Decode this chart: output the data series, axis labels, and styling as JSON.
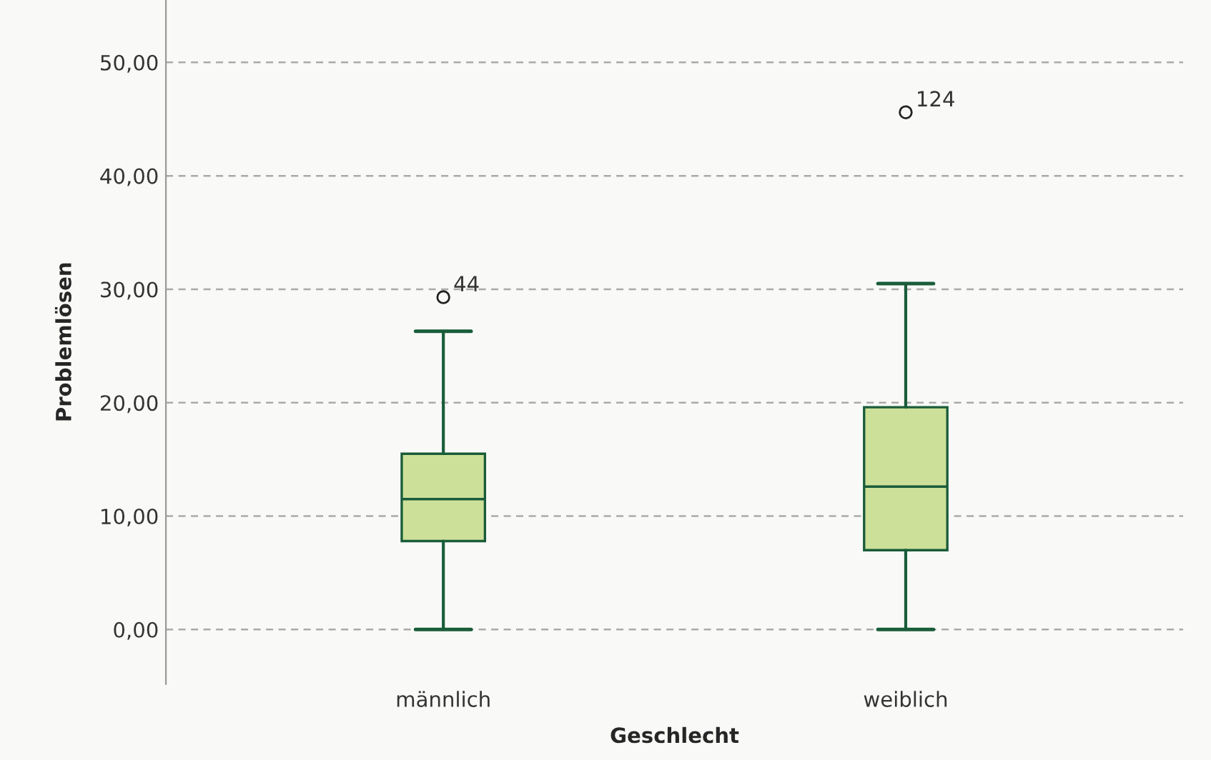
{
  "chart_data": {
    "type": "box",
    "xlabel": "Geschlecht",
    "ylabel": "Problemlösen",
    "categories": [
      "männlich",
      "weiblich"
    ],
    "boxes": [
      {
        "low": 0,
        "q1": 7.8,
        "median": 11.5,
        "q3": 15.5,
        "high": 26.3,
        "outliers": [
          29.3
        ]
      },
      {
        "low": 0,
        "q1": 7.0,
        "median": 12.6,
        "q3": 19.6,
        "high": 30.5,
        "outliers": [
          45.6
        ]
      }
    ],
    "color": "#cde09a",
    "ylim": [
      -4.8,
      55.5
    ],
    "yticks": [
      {
        "value": 0,
        "label": "0,00"
      },
      {
        "value": 10,
        "label": "10,00"
      },
      {
        "value": 20,
        "label": "20,00"
      },
      {
        "value": 30,
        "label": "30,00"
      },
      {
        "value": 40,
        "label": "40,00"
      },
      {
        "value": 50,
        "label": "50,00"
      }
    ],
    "grid": "y",
    "annotations": [
      "44",
      "124"
    ]
  }
}
